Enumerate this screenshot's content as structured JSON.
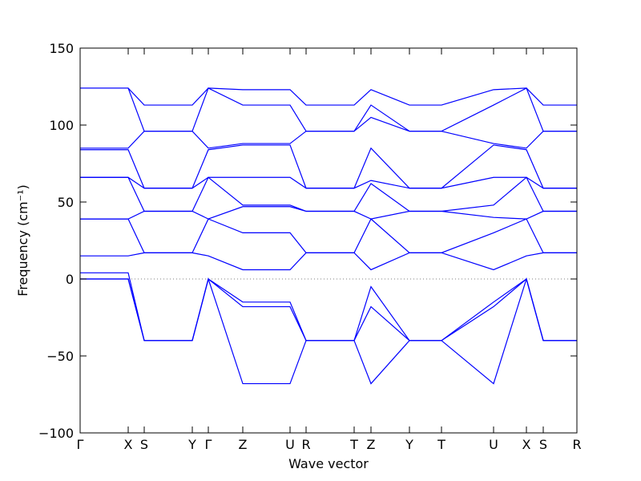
{
  "chart_data": {
    "type": "line",
    "xlabel": "Wave vector",
    "ylabel": "Frequency (cm⁻¹)",
    "x": [
      0,
      60,
      80,
      140,
      160,
      203,
      262,
      282,
      342,
      363,
      411,
      451,
      516,
      557,
      578,
      620
    ],
    "xlim": [
      0,
      620
    ],
    "xticks": [
      {
        "value": 0,
        "label": "Γ"
      },
      {
        "value": 60,
        "label": "X"
      },
      {
        "value": 80,
        "label": "S"
      },
      {
        "value": 140,
        "label": "Y"
      },
      {
        "value": 160,
        "label": "Γ"
      },
      {
        "value": 203,
        "label": "Z"
      },
      {
        "value": 262,
        "label": "U"
      },
      {
        "value": 282,
        "label": "R"
      },
      {
        "value": 342,
        "label": "T"
      },
      {
        "value": 363,
        "label": "Z"
      },
      {
        "value": 411,
        "label": "Y"
      },
      {
        "value": 451,
        "label": "T"
      },
      {
        "value": 516,
        "label": "U"
      },
      {
        "value": 557,
        "label": "X"
      },
      {
        "value": 578,
        "label": "S"
      },
      {
        "value": 620,
        "label": "R"
      }
    ],
    "ylim": [
      -100,
      150
    ],
    "yticks": [
      {
        "value": -100,
        "label": "−100"
      },
      {
        "value": -50,
        "label": "−50"
      },
      0,
      50,
      100,
      150
    ],
    "series": [
      {
        "color": "#0000ff",
        "values": [
          124,
          124,
          113,
          113,
          124,
          123,
          123,
          113,
          113,
          123,
          113,
          113,
          123,
          124,
          113,
          113
        ]
      },
      {
        "color": "#0000ff",
        "values": [
          124,
          124,
          96,
          96,
          124,
          113,
          113,
          96,
          96,
          113,
          96,
          96,
          113,
          124,
          96,
          96
        ]
      },
      {
        "color": "#0000ff",
        "values": [
          85,
          85,
          96,
          96,
          85,
          88,
          88,
          96,
          96,
          105,
          96,
          96,
          88,
          85,
          96,
          96
        ]
      },
      {
        "color": "#0000ff",
        "values": [
          84,
          84,
          59,
          59,
          84,
          87,
          87,
          59,
          59,
          85,
          59,
          59,
          87,
          84,
          59,
          59
        ]
      },
      {
        "color": "#0000ff",
        "values": [
          66,
          66,
          59,
          59,
          66,
          66,
          66,
          59,
          59,
          64,
          59,
          59,
          66,
          66,
          59,
          59
        ]
      },
      {
        "color": "#0000ff",
        "values": [
          66,
          66,
          44,
          44,
          66,
          48,
          48,
          44,
          44,
          62,
          44,
          44,
          48,
          66,
          44,
          44
        ]
      },
      {
        "color": "#0000ff",
        "values": [
          39,
          39,
          44,
          44,
          39,
          47,
          47,
          44,
          44,
          39,
          44,
          44,
          40,
          39,
          44,
          44
        ]
      },
      {
        "color": "#0000ff",
        "values": [
          39,
          39,
          17,
          17,
          39,
          30,
          30,
          17,
          17,
          39,
          17,
          17,
          30,
          39,
          17,
          17
        ]
      },
      {
        "color": "#0000ff",
        "values": [
          15,
          15,
          17,
          17,
          15,
          6,
          6,
          17,
          17,
          6,
          17,
          17,
          6,
          15,
          17,
          17
        ]
      },
      {
        "color": "#0000ff",
        "values": [
          4,
          4,
          -40,
          -40,
          0,
          -15,
          -15,
          -40,
          -40,
          -5,
          -40,
          -40,
          -15,
          0,
          -40,
          -40
        ]
      },
      {
        "color": "#0000ff",
        "values": [
          0,
          0,
          -40,
          -40,
          0,
          -18,
          -18,
          -40,
          -40,
          -18,
          -40,
          -40,
          -18,
          0,
          -40,
          -40
        ]
      },
      {
        "color": "#0000ff",
        "values": [
          0,
          0,
          -40,
          -40,
          0,
          -68,
          -68,
          -40,
          -40,
          -68,
          -40,
          -40,
          -68,
          0,
          -40,
          -40
        ]
      }
    ]
  }
}
